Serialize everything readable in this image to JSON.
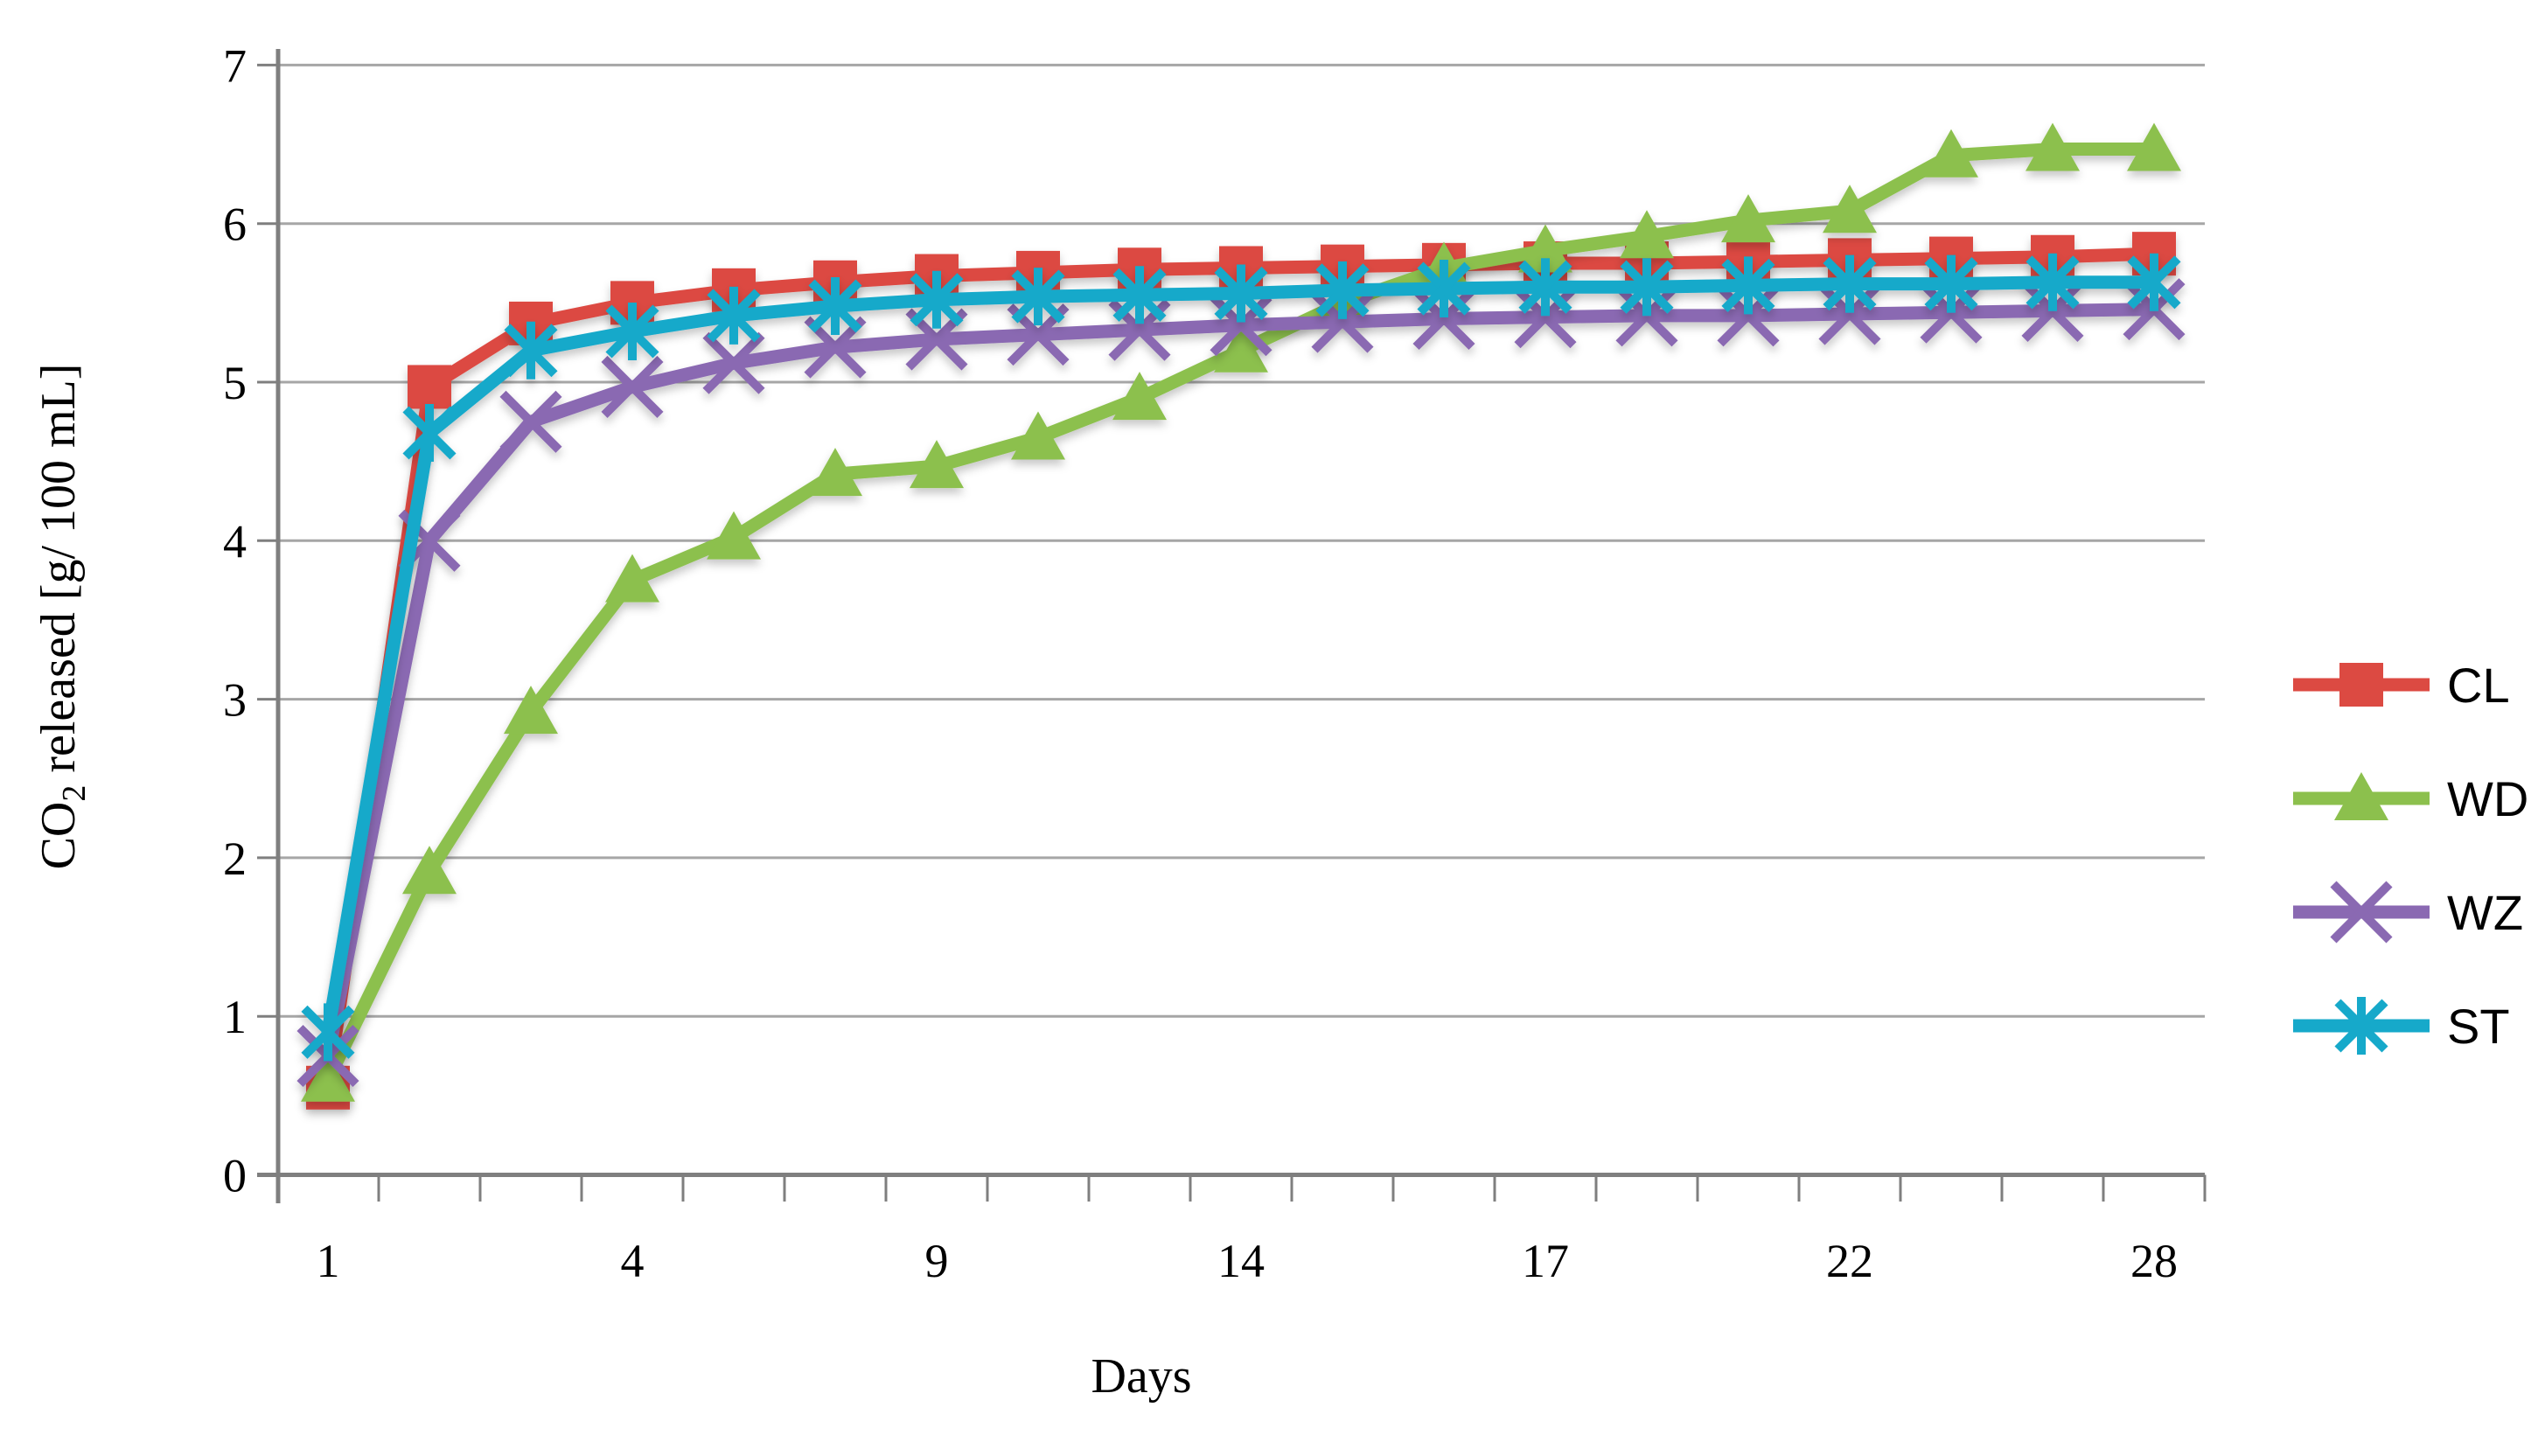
{
  "chart_data": {
    "type": "line",
    "title": "",
    "x_axis": {
      "title": "Days",
      "n_categories": 19,
      "tick_labels": [
        "1",
        "4",
        "9",
        "14",
        "17",
        "22",
        "28"
      ],
      "tick_category_positions": [
        1,
        4,
        7,
        10,
        13,
        16,
        19
      ]
    },
    "y_axis": {
      "title_plain": "CO2 released [g/ 100 mL]",
      "title_parts": {
        "pre": "CO",
        "sub": "2",
        "post": " released [g/ 100 mL]"
      },
      "min": 0,
      "max": 7,
      "tick_step": 1,
      "tick_labels": [
        "0",
        "1",
        "2",
        "3",
        "4",
        "5",
        "6",
        "7"
      ]
    },
    "grid": "horizontal",
    "legend_position": "right",
    "series": [
      {
        "name": "CL",
        "color": "#dc4a42",
        "marker": "square",
        "values": [
          0.55,
          4.97,
          5.37,
          5.5,
          5.58,
          5.63,
          5.67,
          5.69,
          5.71,
          5.72,
          5.73,
          5.74,
          5.75,
          5.75,
          5.76,
          5.77,
          5.78,
          5.79,
          5.81
        ]
      },
      {
        "name": "WD",
        "color": "#8cc04d",
        "marker": "triangle",
        "values": [
          0.6,
          1.91,
          2.92,
          3.75,
          4.02,
          4.42,
          4.47,
          4.65,
          4.9,
          5.2,
          5.5,
          5.72,
          5.83,
          5.92,
          6.02,
          6.08,
          6.43,
          6.47,
          6.47
        ]
      },
      {
        "name": "WZ",
        "color": "#8a69b2",
        "marker": "x",
        "values": [
          0.75,
          4.0,
          4.75,
          4.97,
          5.12,
          5.22,
          5.27,
          5.3,
          5.33,
          5.36,
          5.38,
          5.4,
          5.41,
          5.42,
          5.42,
          5.43,
          5.44,
          5.45,
          5.46
        ]
      },
      {
        "name": "ST",
        "color": "#16a9ca",
        "marker": "asterisk",
        "values": [
          0.9,
          4.68,
          5.2,
          5.32,
          5.42,
          5.48,
          5.52,
          5.54,
          5.55,
          5.56,
          5.58,
          5.59,
          5.6,
          5.6,
          5.61,
          5.62,
          5.62,
          5.63,
          5.63
        ]
      }
    ],
    "colors": {
      "gridline": "#a6a6a6",
      "axis": "#7f7f7f",
      "text": "#000000",
      "background": "#ffffff"
    }
  }
}
